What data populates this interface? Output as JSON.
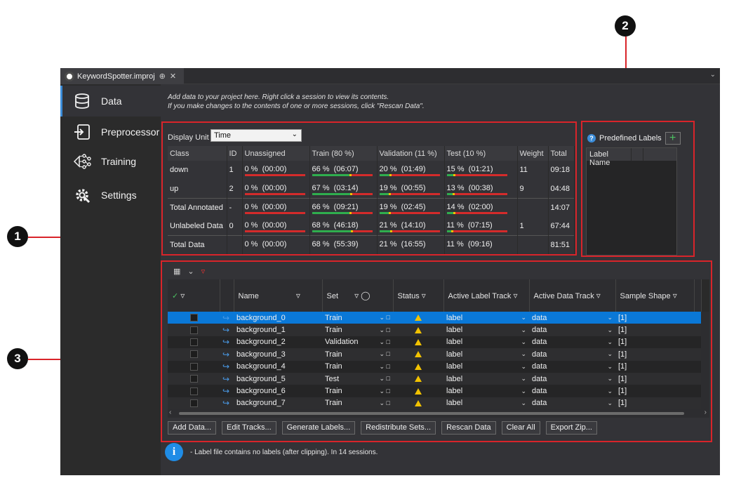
{
  "callouts": [
    "1",
    "2",
    "3"
  ],
  "tab": {
    "title": "KeywordSpotter.improj",
    "pin": "⊕",
    "close": "✕"
  },
  "nav": [
    {
      "label": "Data",
      "icon": "database-icon",
      "active": true
    },
    {
      "label": "Preprocessor",
      "icon": "import-icon"
    },
    {
      "label": "Training",
      "icon": "neural-network-icon"
    },
    {
      "label": "Settings",
      "icon": "gear-icon"
    }
  ],
  "intro": {
    "line1": "Add data to your project here. Right click a session to view its contents.",
    "line2": "If you make changes to the contents of one or more sessions, click \"Rescan Data\"."
  },
  "display_unit": {
    "label": "Display Unit",
    "value": "Time"
  },
  "stats": {
    "headers": [
      "Class",
      "ID",
      "Unassigned",
      "Train (80 %)",
      "Validation (11 %)",
      "Test (10 %)",
      "Weight",
      "Total"
    ],
    "rows": [
      {
        "class": "down",
        "id": "1",
        "unassigned": "0 %  (00:00)",
        "train": "66 %  (06:07)",
        "val": "20 %  (01:49)",
        "test": "15 %  (01:21)",
        "weight": "11",
        "total": "09:18",
        "fill": [
          0.0,
          0.66,
          0.2,
          0.15
        ]
      },
      {
        "class": "up",
        "id": "2",
        "unassigned": "0 %  (00:00)",
        "train": "67 %  (03:14)",
        "val": "19 %  (00:55)",
        "test": "13 %  (00:38)",
        "weight": "9",
        "total": "04:48",
        "fill": [
          0.0,
          0.67,
          0.19,
          0.13
        ]
      },
      {
        "class": "Total Annotated",
        "id": "-",
        "unassigned": "0 %  (00:00)",
        "train": "66 %  (09:21)",
        "val": "19 %  (02:45)",
        "test": "14 %  (02:00)",
        "weight": "",
        "total": "14:07",
        "fill": [
          0.0,
          0.66,
          0.19,
          0.14
        ]
      },
      {
        "class": "Unlabeled Data",
        "id": "0",
        "unassigned": "0 %  (00:00)",
        "train": "68 %  (46:18)",
        "val": "21 %  (14:10)",
        "test": "11 %  (07:15)",
        "weight": "1",
        "total": "67:44",
        "fill": [
          0.0,
          0.68,
          0.21,
          0.11
        ]
      },
      {
        "class": "Total Data",
        "id": "",
        "unassigned": "0 %  (00:00)",
        "train": "68 %  (55:39)",
        "val": "21 %  (16:55)",
        "test": "11 %  (09:16)",
        "weight": "",
        "total": "81:51",
        "fill": null
      }
    ]
  },
  "predefined": {
    "title": "Predefined Labels",
    "help": "?",
    "add": "+",
    "column": "Label Name"
  },
  "sessions": {
    "headers": [
      "Name",
      "Set",
      "Status",
      "Active Label Track",
      "Active Data Track",
      "Sample Shape"
    ],
    "rows": [
      {
        "name": "background_0",
        "set": "Train",
        "label": "label",
        "data": "data",
        "shape": "[1]",
        "selected": true
      },
      {
        "name": "background_1",
        "set": "Train",
        "label": "label",
        "data": "data",
        "shape": "[1]"
      },
      {
        "name": "background_2",
        "set": "Validation",
        "label": "label",
        "data": "data",
        "shape": "[1]"
      },
      {
        "name": "background_3",
        "set": "Train",
        "label": "label",
        "data": "data",
        "shape": "[1]"
      },
      {
        "name": "background_4",
        "set": "Train",
        "label": "label",
        "data": "data",
        "shape": "[1]"
      },
      {
        "name": "background_5",
        "set": "Test",
        "label": "label",
        "data": "data",
        "shape": "[1]"
      },
      {
        "name": "background_6",
        "set": "Train",
        "label": "label",
        "data": "data",
        "shape": "[1]"
      },
      {
        "name": "background_7",
        "set": "Train",
        "label": "label",
        "data": "data",
        "shape": "[1]"
      }
    ]
  },
  "buttons": [
    "Add Data...",
    "Edit Tracks...",
    "Generate Labels...",
    "Redistribute Sets...",
    "Rescan Data",
    "Clear All",
    "Export Zip..."
  ],
  "info": {
    "icon": "i",
    "message": "- Label file contains no labels (after clipping). In 14 sessions."
  },
  "colors": {
    "accent": "#3b8cd8",
    "selection": "#0a78d7",
    "highlight_box": "#d9242a",
    "bar_train": "#2fae4e",
    "bar_rest": "#d42b2b"
  }
}
